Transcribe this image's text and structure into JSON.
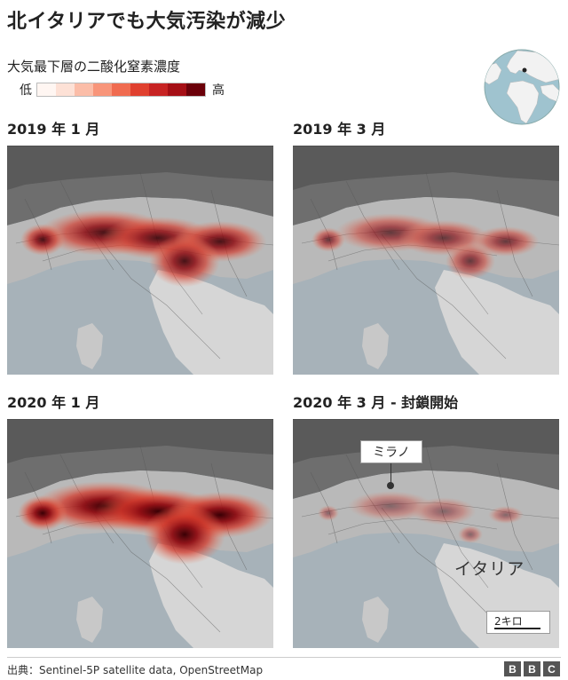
{
  "title": "北イタリアでも大気汚染が減少",
  "subtitle": "大気最下層の二酸化窒素濃度",
  "legend": {
    "low_label": "低",
    "high_label": "高",
    "colors": [
      "#fff6f2",
      "#fde1d6",
      "#fbbda8",
      "#f8957a",
      "#f06b50",
      "#e0402f",
      "#c72323",
      "#a50f15",
      "#6b0009"
    ]
  },
  "panels": [
    {
      "title": "2019 年 1 月",
      "level": 0.85
    },
    {
      "title": "2019 年 3 月",
      "level": 0.55
    },
    {
      "title": "2020 年 1 月",
      "level": 1.0
    },
    {
      "title": "2020 年 3 月 - 封鎖開始",
      "level": 0.2
    }
  ],
  "annotations": {
    "city_label": "ミラノ",
    "country_label": "イタリア",
    "scale_label": "2キロ"
  },
  "footer": {
    "source": "出典：Sentinel-5P satellite data, OpenStreetMap",
    "logo_letters": [
      "B",
      "B",
      "C"
    ]
  }
}
